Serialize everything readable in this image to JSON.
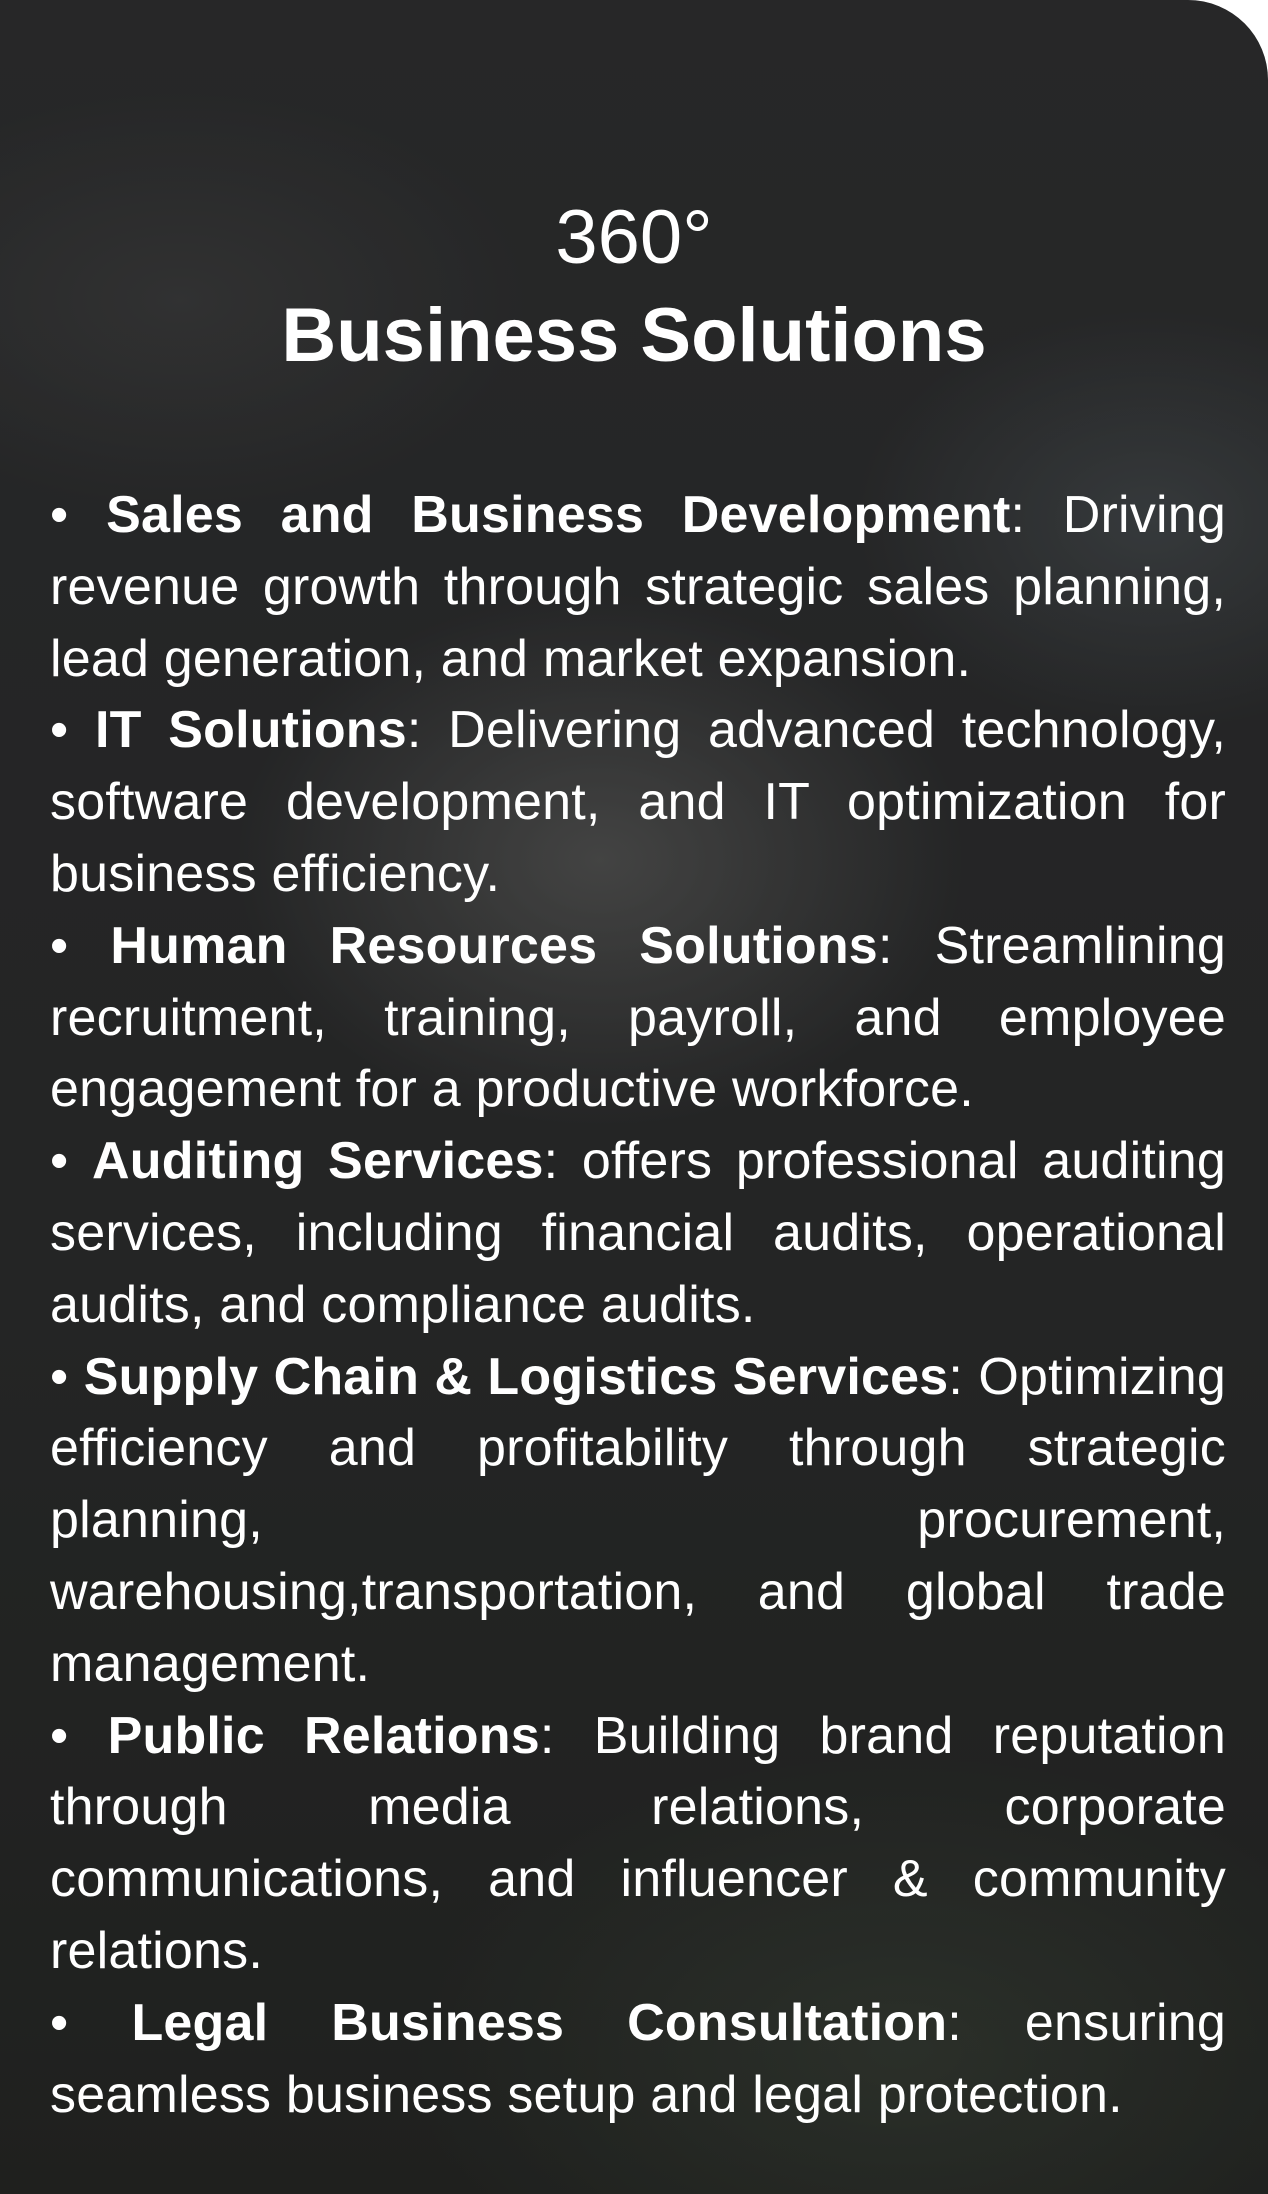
{
  "title": {
    "line1": "360°",
    "line2": "Business Solutions"
  },
  "services": [
    {
      "name": "Sales and Business Development",
      "description": "Driving revenue growth through strategic sales planning, lead generation, and market expansion."
    },
    {
      "name": "IT Solutions",
      "description": "Delivering advanced technology, software development, and IT optimization for business efficiency."
    },
    {
      "name": "Human Resources Solutions",
      "description": "Streamlining recruitment, training, payroll, and employee engagement for a productive workforce."
    },
    {
      "name": "Auditing Services",
      "description": "offers professional auditing services, including financial audits, operational audits, and compliance audits."
    },
    {
      "name": "Supply Chain & Logistics Services",
      "description": "Optimizing efficiency and profitability through strategic planning, procurement, warehousing,transportation, and global trade management."
    },
    {
      "name": "Public Relations",
      "description": "Building brand reputation through media relations, corporate communications, and influencer & community relations."
    },
    {
      "name": "Legal Business Consultation",
      "description": "ensuring seamless business setup and legal protection."
    }
  ],
  "bullet": "•",
  "separator": ":",
  "colors": {
    "text": "#ffffff",
    "card_background": "#2b2c2d"
  }
}
